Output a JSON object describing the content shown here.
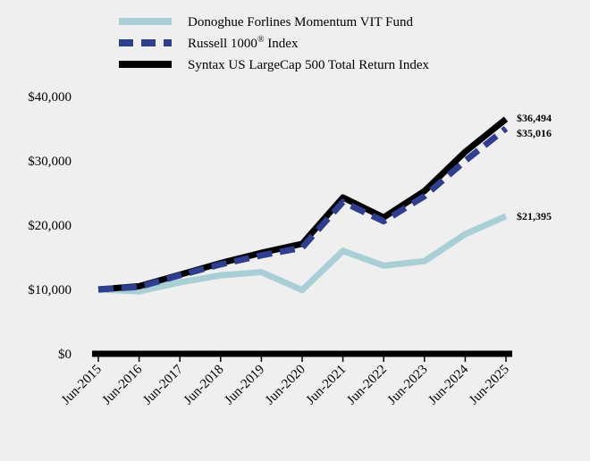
{
  "chart_data": {
    "type": "line",
    "categories": [
      "Jun-2015",
      "Jun-2016",
      "Jun-2017",
      "Jun-2018",
      "Jun-2019",
      "Jun-2020",
      "Jun-2021",
      "Jun-2022",
      "Jun-2023",
      "Jun-2024",
      "Jun-2025"
    ],
    "series": [
      {
        "name": "Donoghue Forlines Momentum VIT Fund",
        "color": "#a8cfd6",
        "style": "solid",
        "values": [
          10000,
          9700,
          11100,
          12200,
          12700,
          9900,
          16000,
          13700,
          14400,
          18600,
          21395
        ],
        "end_label": "$21,395"
      },
      {
        "name": "Russell 1000® Index",
        "name_main": "Russell 1000",
        "name_sup": "®",
        "name_tail": " Index",
        "color": "#2e3f8f",
        "style": "dashed",
        "values": [
          10000,
          10400,
          12200,
          13900,
          15300,
          16500,
          23600,
          20600,
          24500,
          30000,
          35016
        ],
        "end_label": "$35,016"
      },
      {
        "name": "Syntax US LargeCap 500 Total Return Index",
        "color": "#000000",
        "style": "solid",
        "values": [
          10000,
          10500,
          12300,
          14100,
          15700,
          17100,
          24300,
          21200,
          25300,
          31400,
          36494
        ],
        "end_label": "$36,494"
      }
    ],
    "y_ticks": [
      0,
      10000,
      20000,
      30000,
      40000
    ],
    "y_tick_labels": [
      "$0",
      "$10,000",
      "$20,000",
      "$30,000",
      "$40,000"
    ],
    "ylim": [
      0,
      40000
    ],
    "title": "",
    "xlabel": "",
    "ylabel": "",
    "grid": false,
    "legend_position": "top"
  }
}
